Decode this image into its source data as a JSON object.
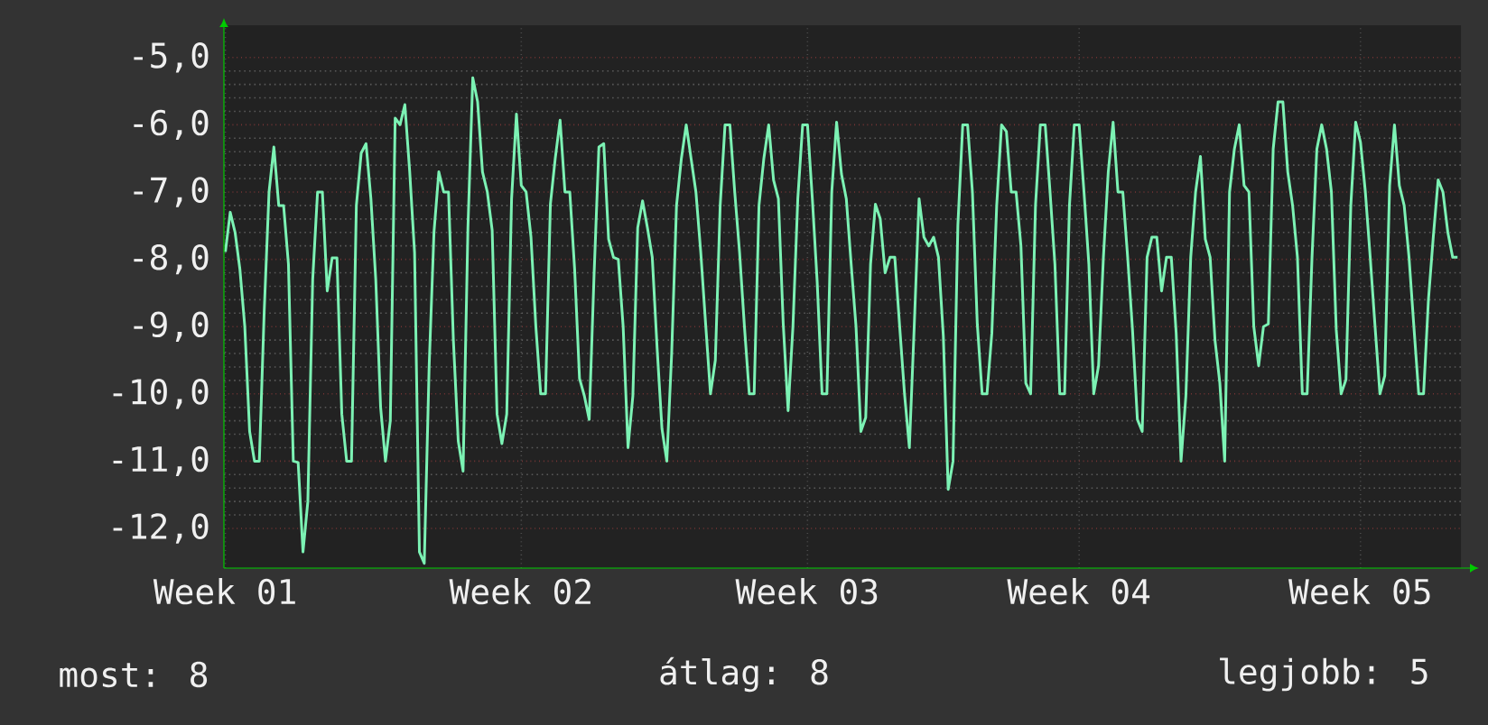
{
  "chart_data": {
    "type": "line",
    "categories": [
      "Week 01",
      null,
      null,
      null,
      null,
      null,
      null,
      null,
      null,
      null,
      null,
      null,
      null,
      null,
      null,
      null,
      null,
      null,
      null,
      null,
      null,
      null,
      null,
      null,
      null,
      null,
      null,
      null,
      null,
      null,
      null,
      null,
      null,
      null,
      null,
      null,
      null,
      null,
      null,
      null,
      null,
      null,
      null,
      null,
      null,
      null,
      null,
      null,
      null,
      null,
      null,
      null,
      null,
      null,
      null,
      null,
      null,
      null,
      null,
      null,
      null,
      "Week 02",
      null,
      null,
      null,
      null,
      null,
      null,
      null,
      null,
      null,
      null,
      null,
      null,
      null,
      null,
      null,
      null,
      null,
      null,
      null,
      null,
      null,
      null,
      null,
      null,
      null,
      null,
      null,
      null,
      null,
      null,
      null,
      null,
      null,
      null,
      null,
      null,
      null,
      null,
      null,
      null,
      null,
      null,
      null,
      null,
      null,
      null,
      null,
      null,
      null,
      null,
      null,
      null,
      null,
      null,
      null,
      null,
      null,
      null,
      "Week 03",
      null,
      null,
      null,
      null,
      null,
      null,
      null,
      null,
      null,
      null,
      null,
      null,
      null,
      null,
      null,
      null,
      null,
      null,
      null,
      null,
      null,
      null,
      null,
      null,
      null,
      null,
      null,
      null,
      null,
      null,
      null,
      null,
      null,
      null,
      null,
      null,
      null,
      null,
      null,
      null,
      null,
      null,
      null,
      null,
      null,
      null,
      null,
      null,
      null,
      null,
      null,
      null,
      null,
      null,
      null,
      "Week 04",
      null,
      null,
      null,
      null,
      null,
      null,
      null,
      null,
      null,
      null,
      null,
      null,
      null,
      null,
      null,
      null,
      null,
      null,
      null,
      null,
      null,
      null,
      null,
      null,
      null,
      null,
      null,
      null,
      null,
      null,
      null,
      null,
      null,
      null,
      null,
      null,
      null,
      null,
      null,
      null,
      null,
      null,
      null,
      null,
      null,
      null,
      null,
      null,
      null,
      null,
      null,
      null,
      null,
      null,
      null,
      null,
      null,
      "Week 05",
      null,
      null,
      null,
      null,
      null,
      null,
      null,
      null,
      null,
      null,
      null,
      null,
      null,
      null,
      null,
      null,
      null,
      null,
      null,
      null
    ],
    "series": [
      {
        "color": "#7cf2b4",
        "values": [
          -7.89,
          -7.3,
          -7.6,
          -8.15,
          -9.0,
          -10.56,
          -11.0,
          -11.0,
          -8.78,
          -7.0,
          -6.33,
          -7.2,
          -7.2,
          -8.07,
          -11.0,
          -11.02,
          -12.35,
          -11.6,
          -8.3,
          -7.0,
          -7.0,
          -8.47,
          -7.98,
          -7.98,
          -10.3,
          -11.0,
          -11.0,
          -7.2,
          -6.42,
          -6.28,
          -7.1,
          -8.3,
          -10.2,
          -11.0,
          -10.4,
          -5.9,
          -6.0,
          -5.7,
          -6.7,
          -7.9,
          -12.35,
          -12.52,
          -9.6,
          -7.6,
          -6.7,
          -7.0,
          -7.0,
          -9.2,
          -10.7,
          -11.15,
          -7.53,
          -5.3,
          -5.66,
          -6.7,
          -7.0,
          -7.57,
          -10.3,
          -10.74,
          -10.3,
          -7.1,
          -5.84,
          -6.9,
          -7.0,
          -7.67,
          -9.0,
          -10.0,
          -10.0,
          -7.18,
          -6.5,
          -5.93,
          -7.0,
          -7.0,
          -8.15,
          -9.77,
          -10.03,
          -10.38,
          -8.24,
          -6.33,
          -6.28,
          -7.7,
          -7.97,
          -8.0,
          -9.0,
          -10.8,
          -10.03,
          -7.53,
          -7.13,
          -7.53,
          -7.97,
          -9.32,
          -10.52,
          -11.0,
          -9.4,
          -7.2,
          -6.5,
          -6.0,
          -6.5,
          -7.0,
          -7.9,
          -8.96,
          -10.0,
          -9.5,
          -7.2,
          -6.0,
          -6.0,
          -7.0,
          -7.9,
          -9.0,
          -10.0,
          -10.0,
          -7.2,
          -6.5,
          -6.0,
          -6.82,
          -7.1,
          -8.96,
          -10.25,
          -9.0,
          -7.1,
          -6.0,
          -6.0,
          -7.1,
          -8.34,
          -10.0,
          -10.0,
          -7.0,
          -5.96,
          -6.73,
          -7.1,
          -8.07,
          -9.0,
          -10.56,
          -10.35,
          -8.07,
          -7.18,
          -7.4,
          -8.2,
          -7.97,
          -7.97,
          -9.0,
          -10.0,
          -10.8,
          -9.0,
          -7.1,
          -7.67,
          -7.8,
          -7.67,
          -7.97,
          -9.14,
          -11.42,
          -11.0,
          -7.49,
          -6.0,
          -6.0,
          -7.0,
          -8.96,
          -10.0,
          -10.0,
          -9.1,
          -7.2,
          -6.0,
          -6.1,
          -7.0,
          -7.0,
          -7.8,
          -9.84,
          -10.0,
          -7.2,
          -6.0,
          -6.0,
          -7.0,
          -8.07,
          -10.0,
          -10.0,
          -7.2,
          -6.0,
          -6.0,
          -7.0,
          -8.07,
          -10.0,
          -9.58,
          -7.97,
          -6.7,
          -5.96,
          -7.0,
          -7.0,
          -7.97,
          -9.05,
          -10.38,
          -10.56,
          -7.97,
          -7.67,
          -7.67,
          -8.47,
          -7.97,
          -7.97,
          -9.1,
          -11.0,
          -10.03,
          -7.97,
          -7.0,
          -6.47,
          -7.7,
          -7.97,
          -9.2,
          -9.84,
          -11.0,
          -7.0,
          -6.36,
          -6.0,
          -6.9,
          -7.0,
          -9.0,
          -9.58,
          -9.0,
          -8.96,
          -6.36,
          -5.66,
          -5.66,
          -6.7,
          -7.2,
          -7.97,
          -10.0,
          -10.0,
          -7.97,
          -6.36,
          -6.0,
          -6.36,
          -7.0,
          -9.05,
          -10.0,
          -9.79,
          -7.2,
          -5.96,
          -6.26,
          -7.0,
          -7.97,
          -9.0,
          -10.0,
          -9.73,
          -6.9,
          -6.0,
          -6.9,
          -7.2,
          -7.97,
          -9.0,
          -10.0,
          -10.0,
          -8.6,
          -7.67,
          -6.82,
          -7.0,
          -7.6,
          -7.97,
          -7.97
        ]
      }
    ],
    "ylim": [
      -12.59,
      -4.52
    ],
    "yticks": [
      {
        "value": -5,
        "label": "-5,0"
      },
      {
        "value": -6,
        "label": "-6,0"
      },
      {
        "value": -7,
        "label": "-7,0"
      },
      {
        "value": -8,
        "label": "-8,0"
      },
      {
        "value": -9,
        "label": "-9,0"
      },
      {
        "value": -10,
        "label": "-10,0"
      },
      {
        "value": -11,
        "label": "-11,0"
      },
      {
        "value": -12,
        "label": "-12,0"
      }
    ],
    "grid": true,
    "marker": "none",
    "annotations": [
      "most: 8",
      "átlag: 8",
      "legjobb: 5"
    ]
  }
}
